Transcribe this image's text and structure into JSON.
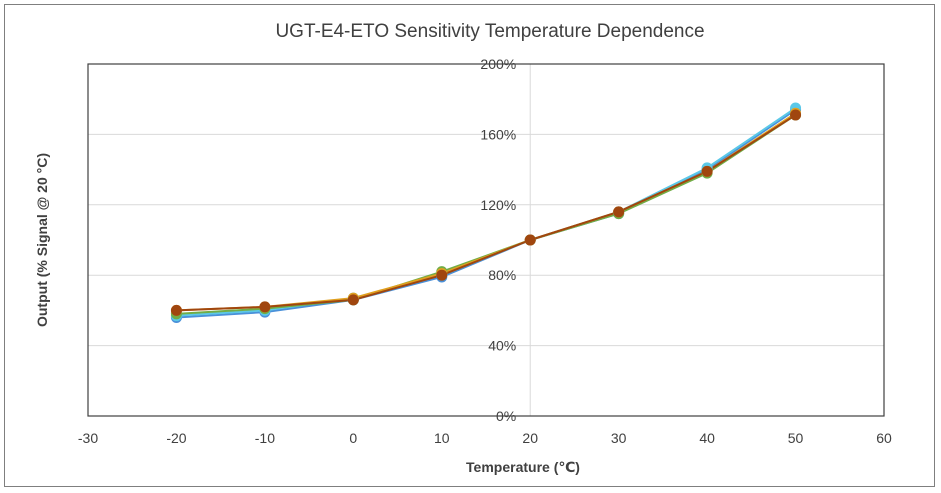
{
  "chart_data": {
    "type": "line",
    "title": "UGT-E4-ETO  Sensitivity Temperature  Dependence",
    "xlabel": "Temperature (℃)",
    "ylabel": "Output (% Signal @ 20 °C)",
    "xlim": [
      -30,
      60
    ],
    "ylim": [
      0,
      200
    ],
    "x_ticks": [
      "-30",
      "-20",
      "-10",
      "0",
      "10",
      "20",
      "30",
      "40",
      "50",
      "60"
    ],
    "y_ticks": [
      "0%",
      "40%",
      "80%",
      "120%",
      "160%",
      "200%"
    ],
    "grid": "horizontal",
    "x": [
      -20,
      -10,
      0,
      10,
      20,
      30,
      40,
      50
    ],
    "series": [
      {
        "color": "#4a90d9",
        "values": [
          56,
          59,
          66,
          79,
          100,
          115,
          140,
          174
        ]
      },
      {
        "color": "#5bc8e8",
        "values": [
          57,
          60,
          67,
          80,
          100,
          116,
          141,
          175
        ]
      },
      {
        "color": "#70ad47",
        "values": [
          58,
          61,
          66,
          82,
          100,
          115,
          138,
          171
        ]
      },
      {
        "color": "#e0a020",
        "values": [
          60,
          62,
          67,
          81,
          100,
          116,
          139,
          172
        ]
      },
      {
        "color": "#a0460f",
        "values": [
          60,
          62,
          66,
          80,
          100,
          116,
          139,
          171
        ]
      }
    ]
  }
}
